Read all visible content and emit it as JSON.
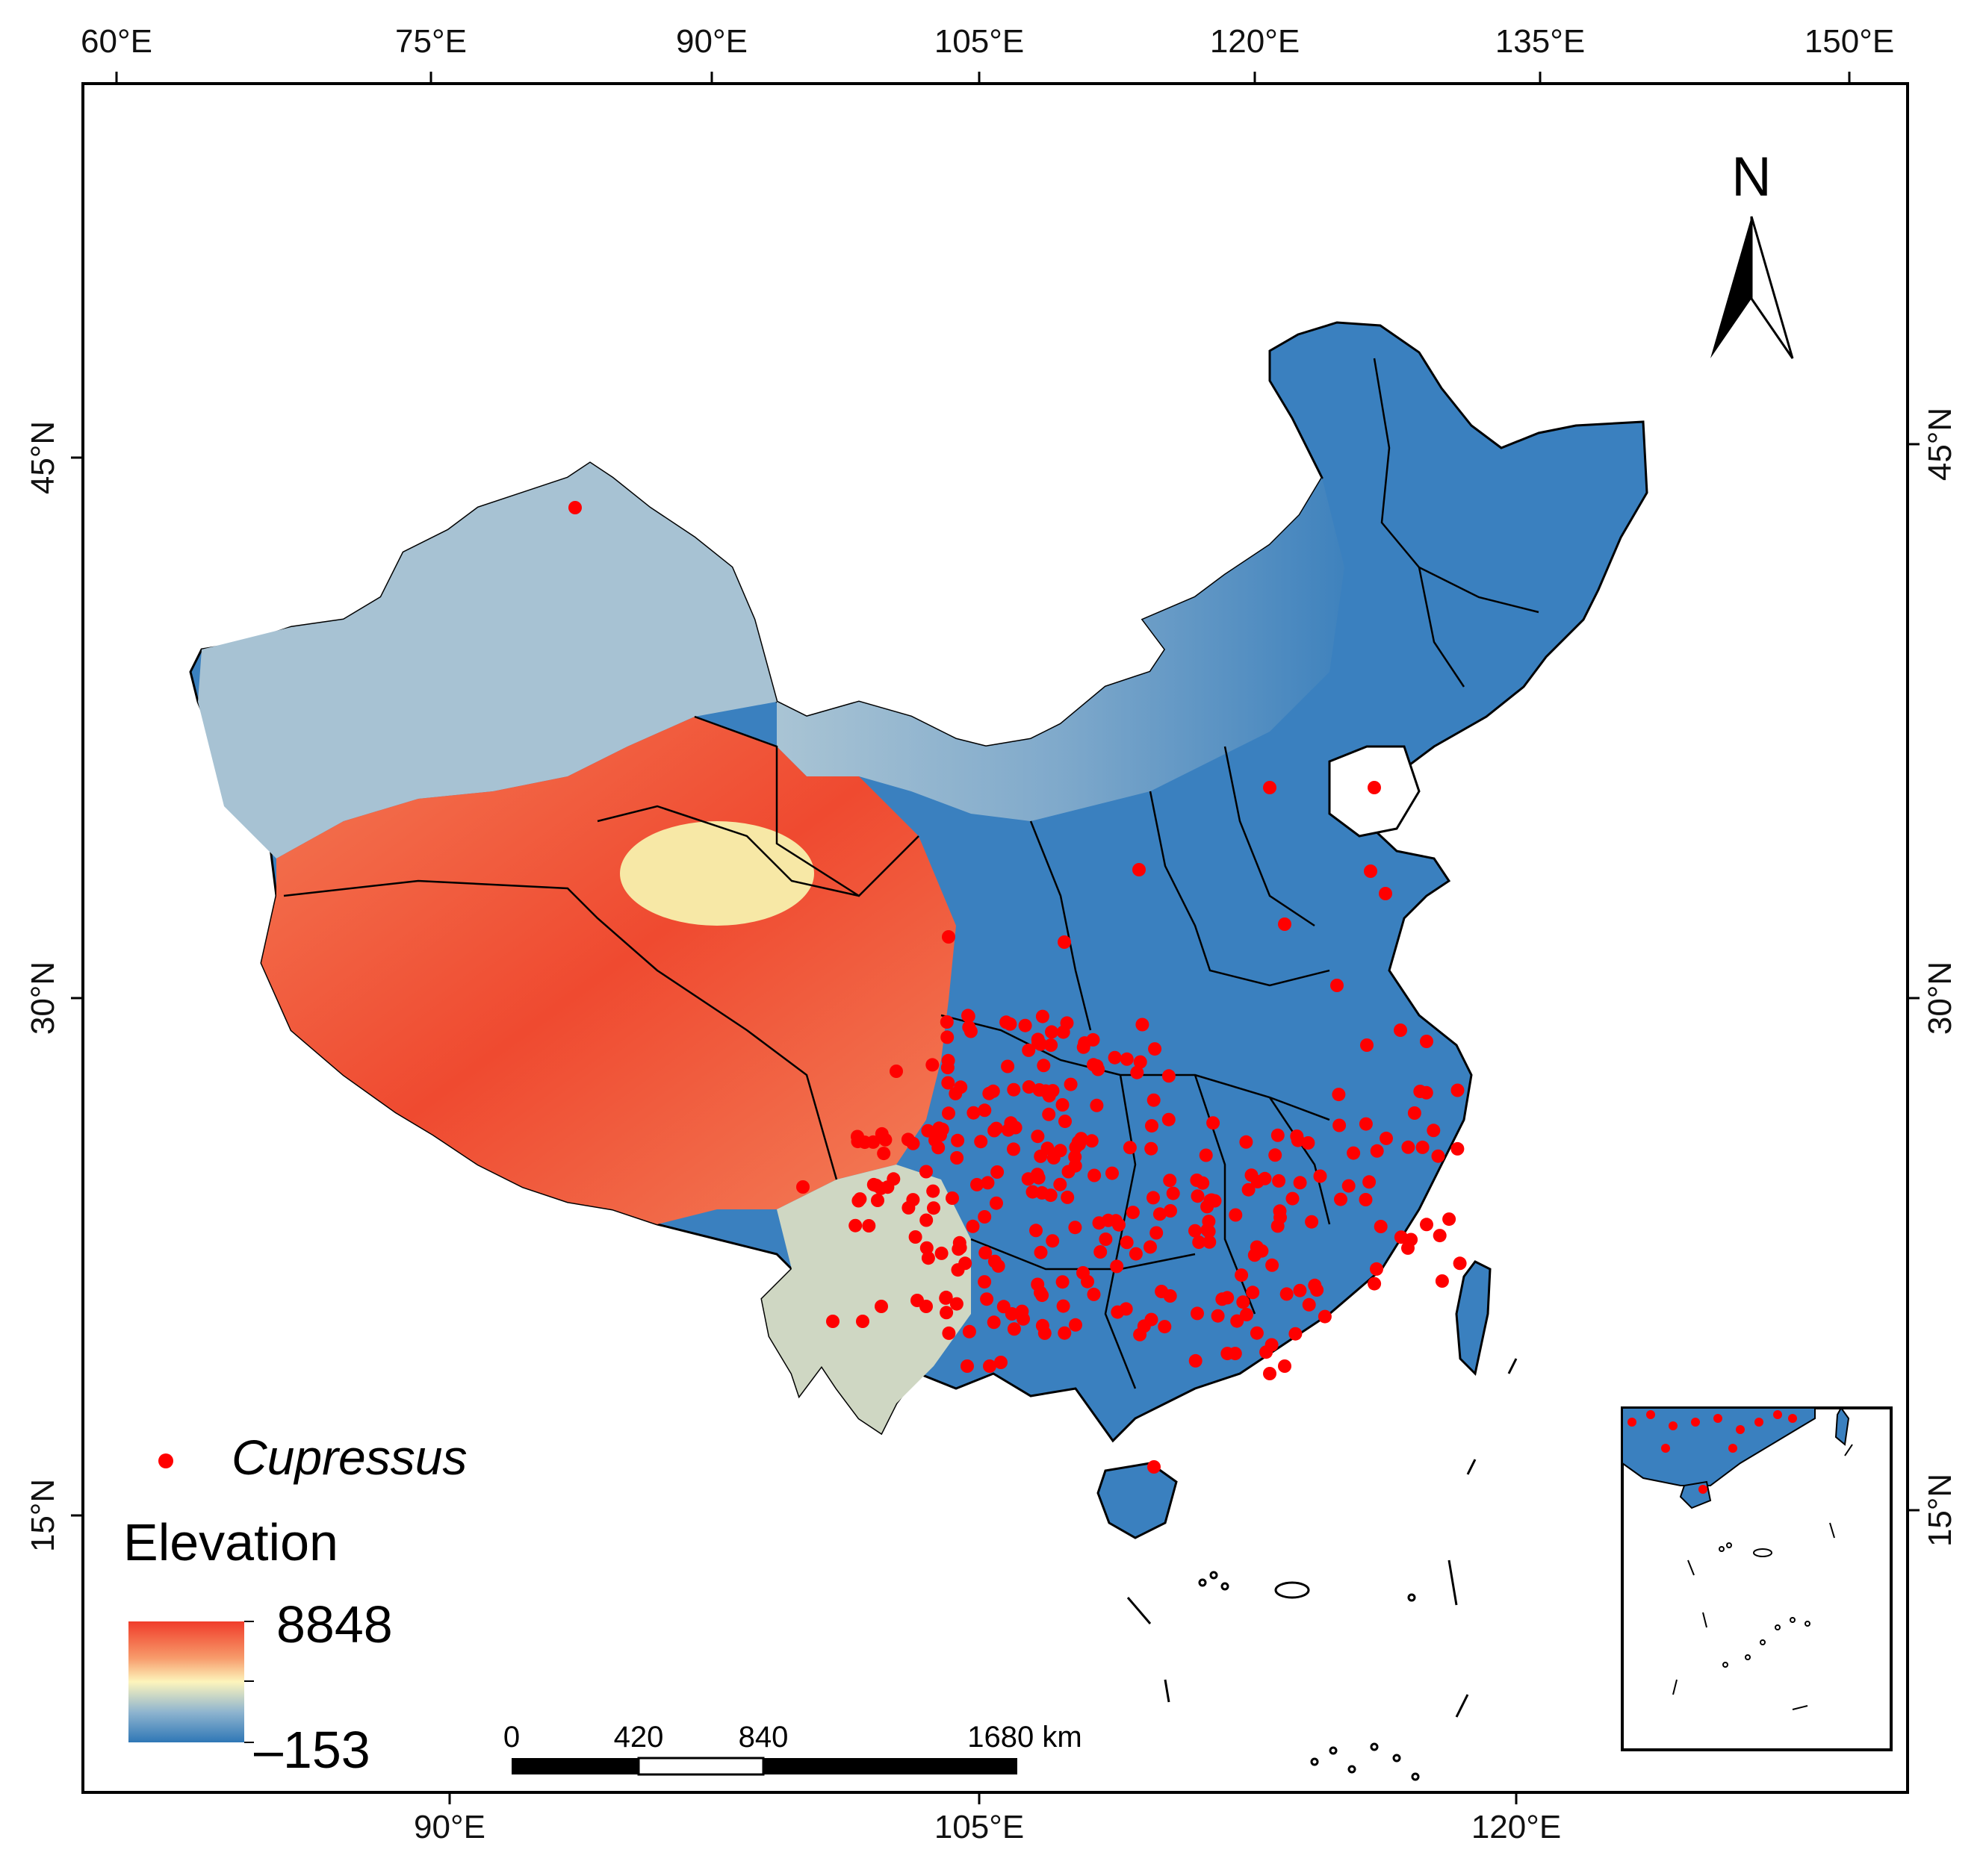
{
  "map": {
    "top_lon_labels": [
      "60°E",
      "75°E",
      "90°E",
      "105°E",
      "120°E",
      "135°E",
      "150°E"
    ],
    "bottom_lon_labels": [
      "90°E",
      "105°E",
      "120°E"
    ],
    "left_lat_labels": [
      "45°N",
      "30°N",
      "15°N"
    ],
    "right_lat_labels": [
      "45°N",
      "30°N",
      "15°N"
    ],
    "north_label": "N",
    "legend": {
      "points_label": "Cupressus",
      "points_color": "#ff0000",
      "elevation_title": "Elevation",
      "elevation_max": "8848",
      "elevation_min": "–153",
      "ramp_colors": [
        "#f03c2a",
        "#f79a6a",
        "#fdf5bc",
        "#8eb4cf",
        "#2f77b6"
      ]
    },
    "scalebar": {
      "labels": [
        "0",
        "420",
        "840",
        "1680 km"
      ]
    },
    "colors": {
      "lowland": "#2f77b6",
      "plateau": "#ef5a3a",
      "boundary": "#000000"
    }
  }
}
